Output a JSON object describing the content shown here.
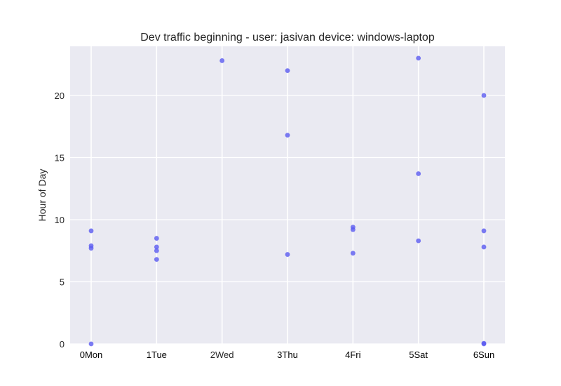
{
  "chart_data": {
    "type": "scatter",
    "title": "Dev traffic beginning - user: jasivan device: windows-laptop",
    "xlabel": "",
    "ylabel": "Hour of Day",
    "x_categories": [
      "Mon",
      "Tue",
      "Wed",
      "Thu",
      "Fri",
      "Sat",
      "Sun"
    ],
    "x_tick_labels": [
      "0Mon",
      "1Tue",
      "2Wed",
      "3Thu",
      "4Fri",
      "5Sat",
      "6Sun"
    ],
    "y_ticks": [
      0,
      5,
      10,
      15,
      20
    ],
    "ylim": [
      0,
      24
    ],
    "grid": true,
    "marker_color": "#5a5af0",
    "background_color": "#eaeaf2",
    "grid_color": "#ffffff",
    "series": [
      {
        "points": [
          {
            "x": 0,
            "y": 0.0
          },
          {
            "x": 0,
            "y": 7.7
          },
          {
            "x": 0,
            "y": 7.9
          },
          {
            "x": 0,
            "y": 9.1
          },
          {
            "x": 1,
            "y": 6.8
          },
          {
            "x": 1,
            "y": 7.5
          },
          {
            "x": 1,
            "y": 7.8
          },
          {
            "x": 1,
            "y": 8.5
          },
          {
            "x": 2,
            "y": 22.8
          },
          {
            "x": 3,
            "y": 7.2
          },
          {
            "x": 3,
            "y": 16.8
          },
          {
            "x": 3,
            "y": 22.0
          },
          {
            "x": 4,
            "y": 7.3
          },
          {
            "x": 4,
            "y": 9.2
          },
          {
            "x": 4,
            "y": 9.4
          },
          {
            "x": 5,
            "y": 8.3
          },
          {
            "x": 5,
            "y": 13.7
          },
          {
            "x": 5,
            "y": 23.0
          },
          {
            "x": 6,
            "y": 0.0
          },
          {
            "x": 6,
            "y": 0.05
          },
          {
            "x": 6,
            "y": 7.8
          },
          {
            "x": 6,
            "y": 9.1
          },
          {
            "x": 6,
            "y": 20.0
          }
        ]
      }
    ]
  }
}
